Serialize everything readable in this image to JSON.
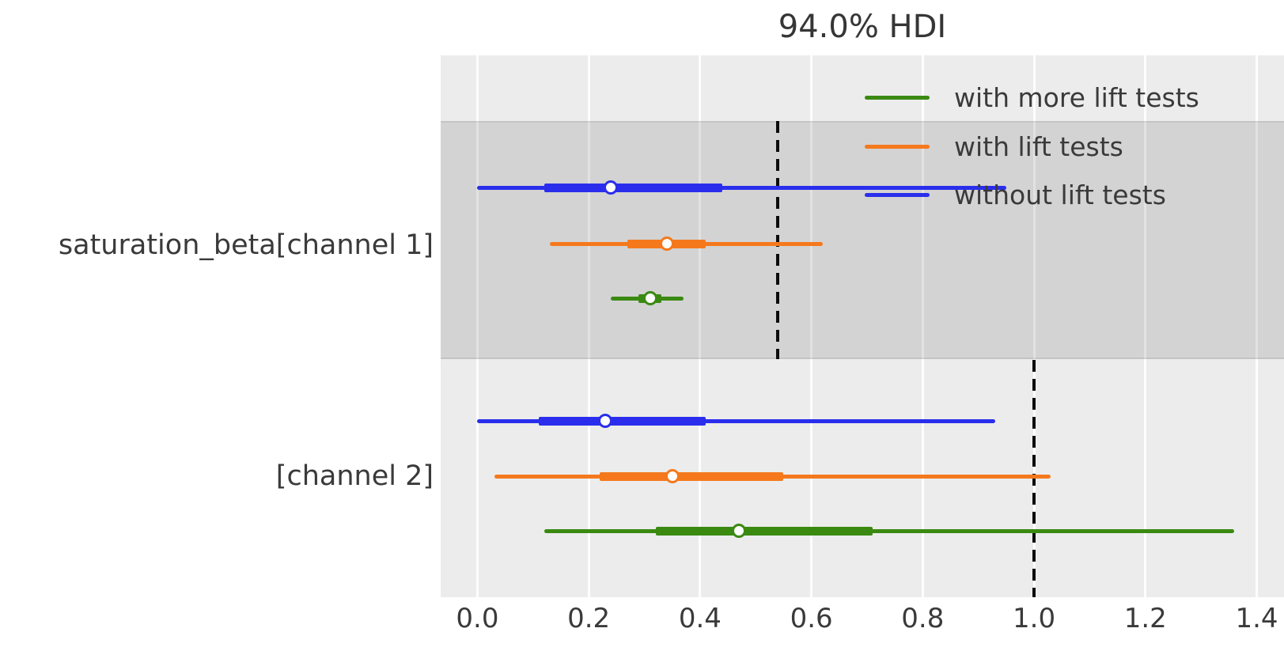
{
  "title": "94.0% HDI",
  "colors": {
    "blue": "#2a2eec",
    "orange": "#f5791c",
    "green": "#3a8a12",
    "plot_bg": "#ececec",
    "band": "#d4d4d4",
    "ref_line": "#0c0c0c",
    "text": "#3a3a3a"
  },
  "legend": {
    "items": [
      {
        "label": "with more lift tests",
        "color_key": "green"
      },
      {
        "label": "with lift tests",
        "color_key": "orange"
      },
      {
        "label": "without lift tests",
        "color_key": "blue"
      }
    ]
  },
  "chart_data": {
    "type": "forest",
    "title": "94.0% HDI",
    "hdi_prob": 0.94,
    "xlabel": "",
    "xlim": [
      -0.066,
      1.449
    ],
    "xticks": [
      0.0,
      0.2,
      0.4,
      0.6,
      0.8,
      1.0,
      1.2,
      1.4
    ],
    "grid": true,
    "legend_position": "upper right",
    "groups": [
      {
        "label": "saturation_beta[channel 1]",
        "shaded": true,
        "ref_value": 0.54,
        "rows": [
          {
            "series": "without lift tests",
            "color": "blue",
            "hdi_outer": [
              0.0,
              0.95
            ],
            "hdi_inner": [
              0.12,
              0.44
            ],
            "point": 0.24
          },
          {
            "series": "with lift tests",
            "color": "orange",
            "hdi_outer": [
              0.13,
              0.62
            ],
            "hdi_inner": [
              0.27,
              0.41
            ],
            "point": 0.34
          },
          {
            "series": "with more lift tests",
            "color": "green",
            "hdi_outer": [
              0.24,
              0.37
            ],
            "hdi_inner": [
              0.29,
              0.33
            ],
            "point": 0.31
          }
        ]
      },
      {
        "label": "[channel 2]",
        "shaded": false,
        "ref_value": 1.0,
        "rows": [
          {
            "series": "without lift tests",
            "color": "blue",
            "hdi_outer": [
              0.0,
              0.93
            ],
            "hdi_inner": [
              0.11,
              0.41
            ],
            "point": 0.23
          },
          {
            "series": "with lift tests",
            "color": "orange",
            "hdi_outer": [
              0.03,
              1.03
            ],
            "hdi_inner": [
              0.22,
              0.55
            ],
            "point": 0.35
          },
          {
            "series": "with more lift tests",
            "color": "green",
            "hdi_outer": [
              0.12,
              1.36
            ],
            "hdi_inner": [
              0.32,
              0.71
            ],
            "point": 0.47
          }
        ]
      }
    ]
  }
}
